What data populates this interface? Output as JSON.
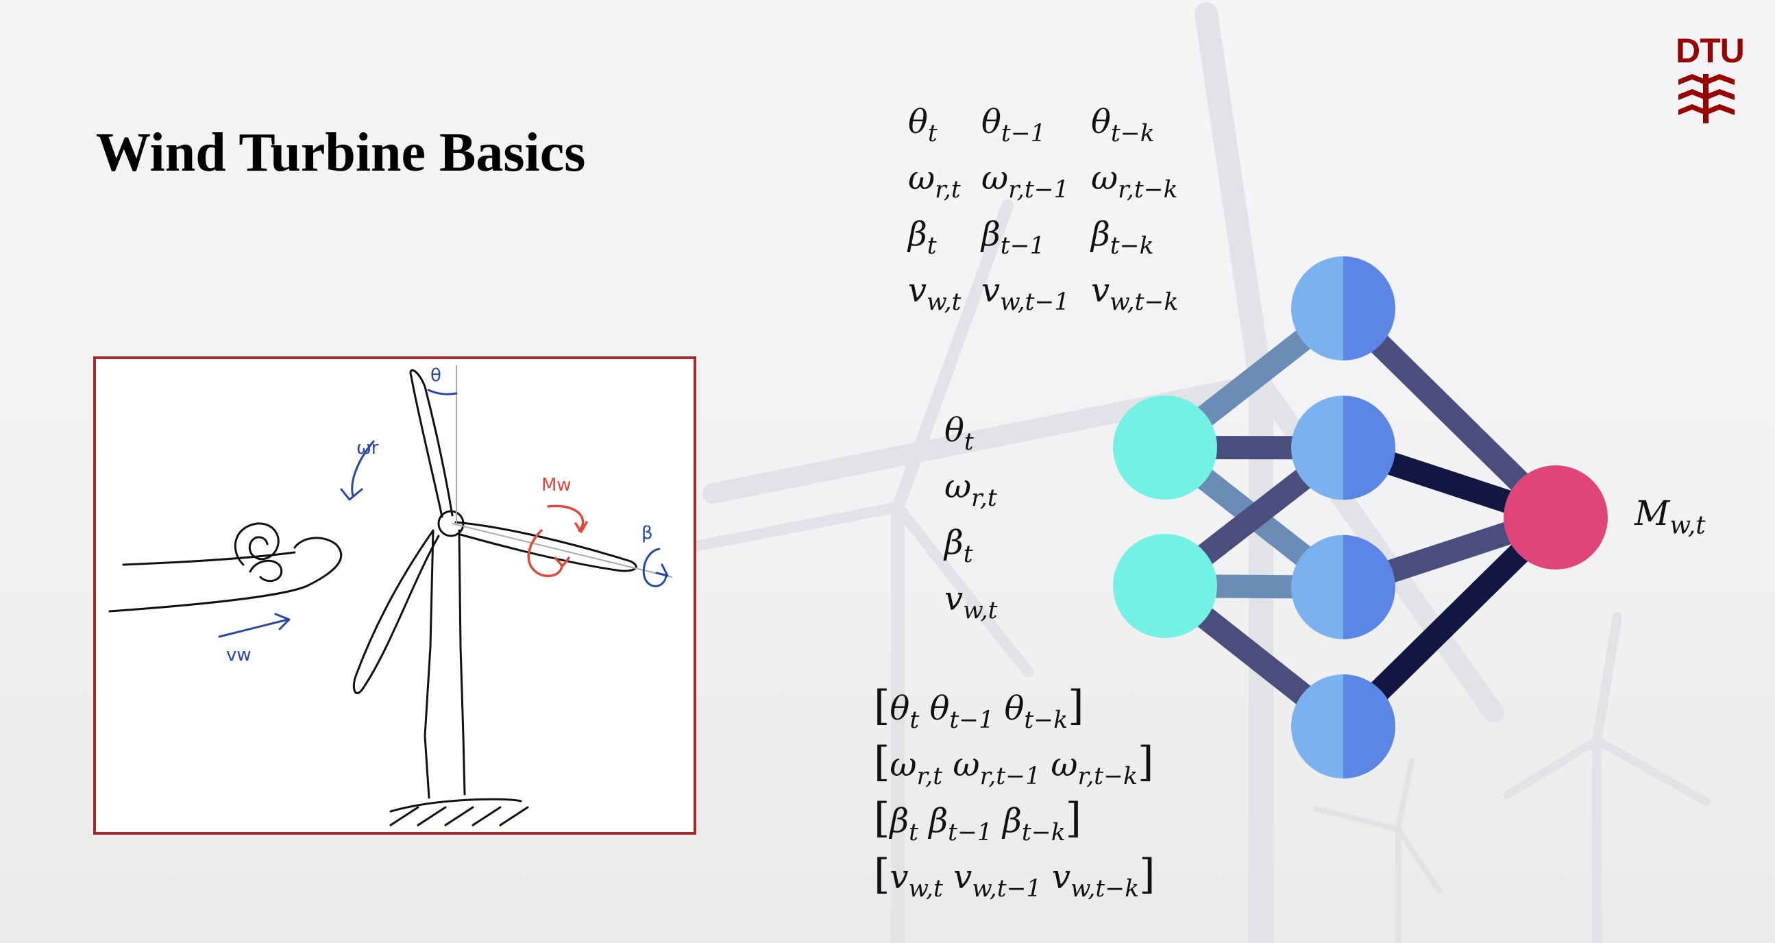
{
  "slide": {
    "title": "Wind Turbine Basics",
    "logo_text": "DTU",
    "logo_color": "#990000"
  },
  "sketch_labels": {
    "theta": "θ",
    "omega_r": "ωr",
    "moment": "Mw",
    "beta": "β",
    "wind_speed": "vw"
  },
  "lag_grid": [
    [
      {
        "sym": "θ",
        "sub": "t"
      },
      {
        "sym": "θ",
        "sub": "t−1"
      },
      {
        "sym": "θ",
        "sub": "t−k"
      }
    ],
    [
      {
        "sym": "ω",
        "sub": "r,t"
      },
      {
        "sym": "ω",
        "sub": "r,t−1"
      },
      {
        "sym": "ω",
        "sub": "r,t−k"
      }
    ],
    [
      {
        "sym": "β",
        "sub": "t"
      },
      {
        "sym": "β",
        "sub": "t−1"
      },
      {
        "sym": "β",
        "sub": "t−k"
      }
    ],
    [
      {
        "sym": "v",
        "sub": "w,t"
      },
      {
        "sym": "v",
        "sub": "w,t−1"
      },
      {
        "sym": "v",
        "sub": "w,t−k"
      }
    ]
  ],
  "input_vector": [
    {
      "sym": "θ",
      "sub": "t"
    },
    {
      "sym": "ω",
      "sub": "r,t"
    },
    {
      "sym": "β",
      "sub": "t"
    },
    {
      "sym": "v",
      "sub": "w,t"
    }
  ],
  "lag_vectors": [
    [
      {
        "sym": "θ",
        "sub": "t"
      },
      {
        "sym": "θ",
        "sub": "t−1"
      },
      {
        "sym": "θ",
        "sub": "t−k"
      }
    ],
    [
      {
        "sym": "ω",
        "sub": "r,t"
      },
      {
        "sym": "ω",
        "sub": "r,t−1"
      },
      {
        "sym": "ω",
        "sub": "r,t−k"
      }
    ],
    [
      {
        "sym": "β",
        "sub": "t"
      },
      {
        "sym": "β",
        "sub": "t−1"
      },
      {
        "sym": "β",
        "sub": "t−k"
      }
    ],
    [
      {
        "sym": "v",
        "sub": "w,t"
      },
      {
        "sym": "v",
        "sub": "w,t−1"
      },
      {
        "sym": "v",
        "sub": "w,t−k"
      }
    ]
  ],
  "bracket_open": "[",
  "bracket_close": "]",
  "output": {
    "sym": "M",
    "sub": "w,t"
  },
  "network": {
    "input_nodes": 2,
    "hidden_nodes": 4,
    "output_nodes": 1,
    "colors": {
      "input": "#72f1e4",
      "hidden_light": "#79b2ee",
      "hidden_dark": "#5b86e6",
      "output": "#e0457a",
      "edge_light": "#6a8cb5",
      "edge_mid": "#4a4e7c",
      "edge_dark": "#121741"
    },
    "edges": [
      {
        "from": "i0",
        "to": "h0",
        "tone": "light"
      },
      {
        "from": "i0",
        "to": "h1",
        "tone": "mid"
      },
      {
        "from": "i0",
        "to": "h2",
        "tone": "light"
      },
      {
        "from": "i1",
        "to": "h1",
        "tone": "mid"
      },
      {
        "from": "i1",
        "to": "h2",
        "tone": "light"
      },
      {
        "from": "i1",
        "to": "h3",
        "tone": "mid"
      },
      {
        "from": "h0",
        "to": "o0",
        "tone": "mid"
      },
      {
        "from": "h1",
        "to": "o0",
        "tone": "dark"
      },
      {
        "from": "h2",
        "to": "o0",
        "tone": "mid"
      },
      {
        "from": "h3",
        "to": "o0",
        "tone": "dark"
      }
    ]
  }
}
